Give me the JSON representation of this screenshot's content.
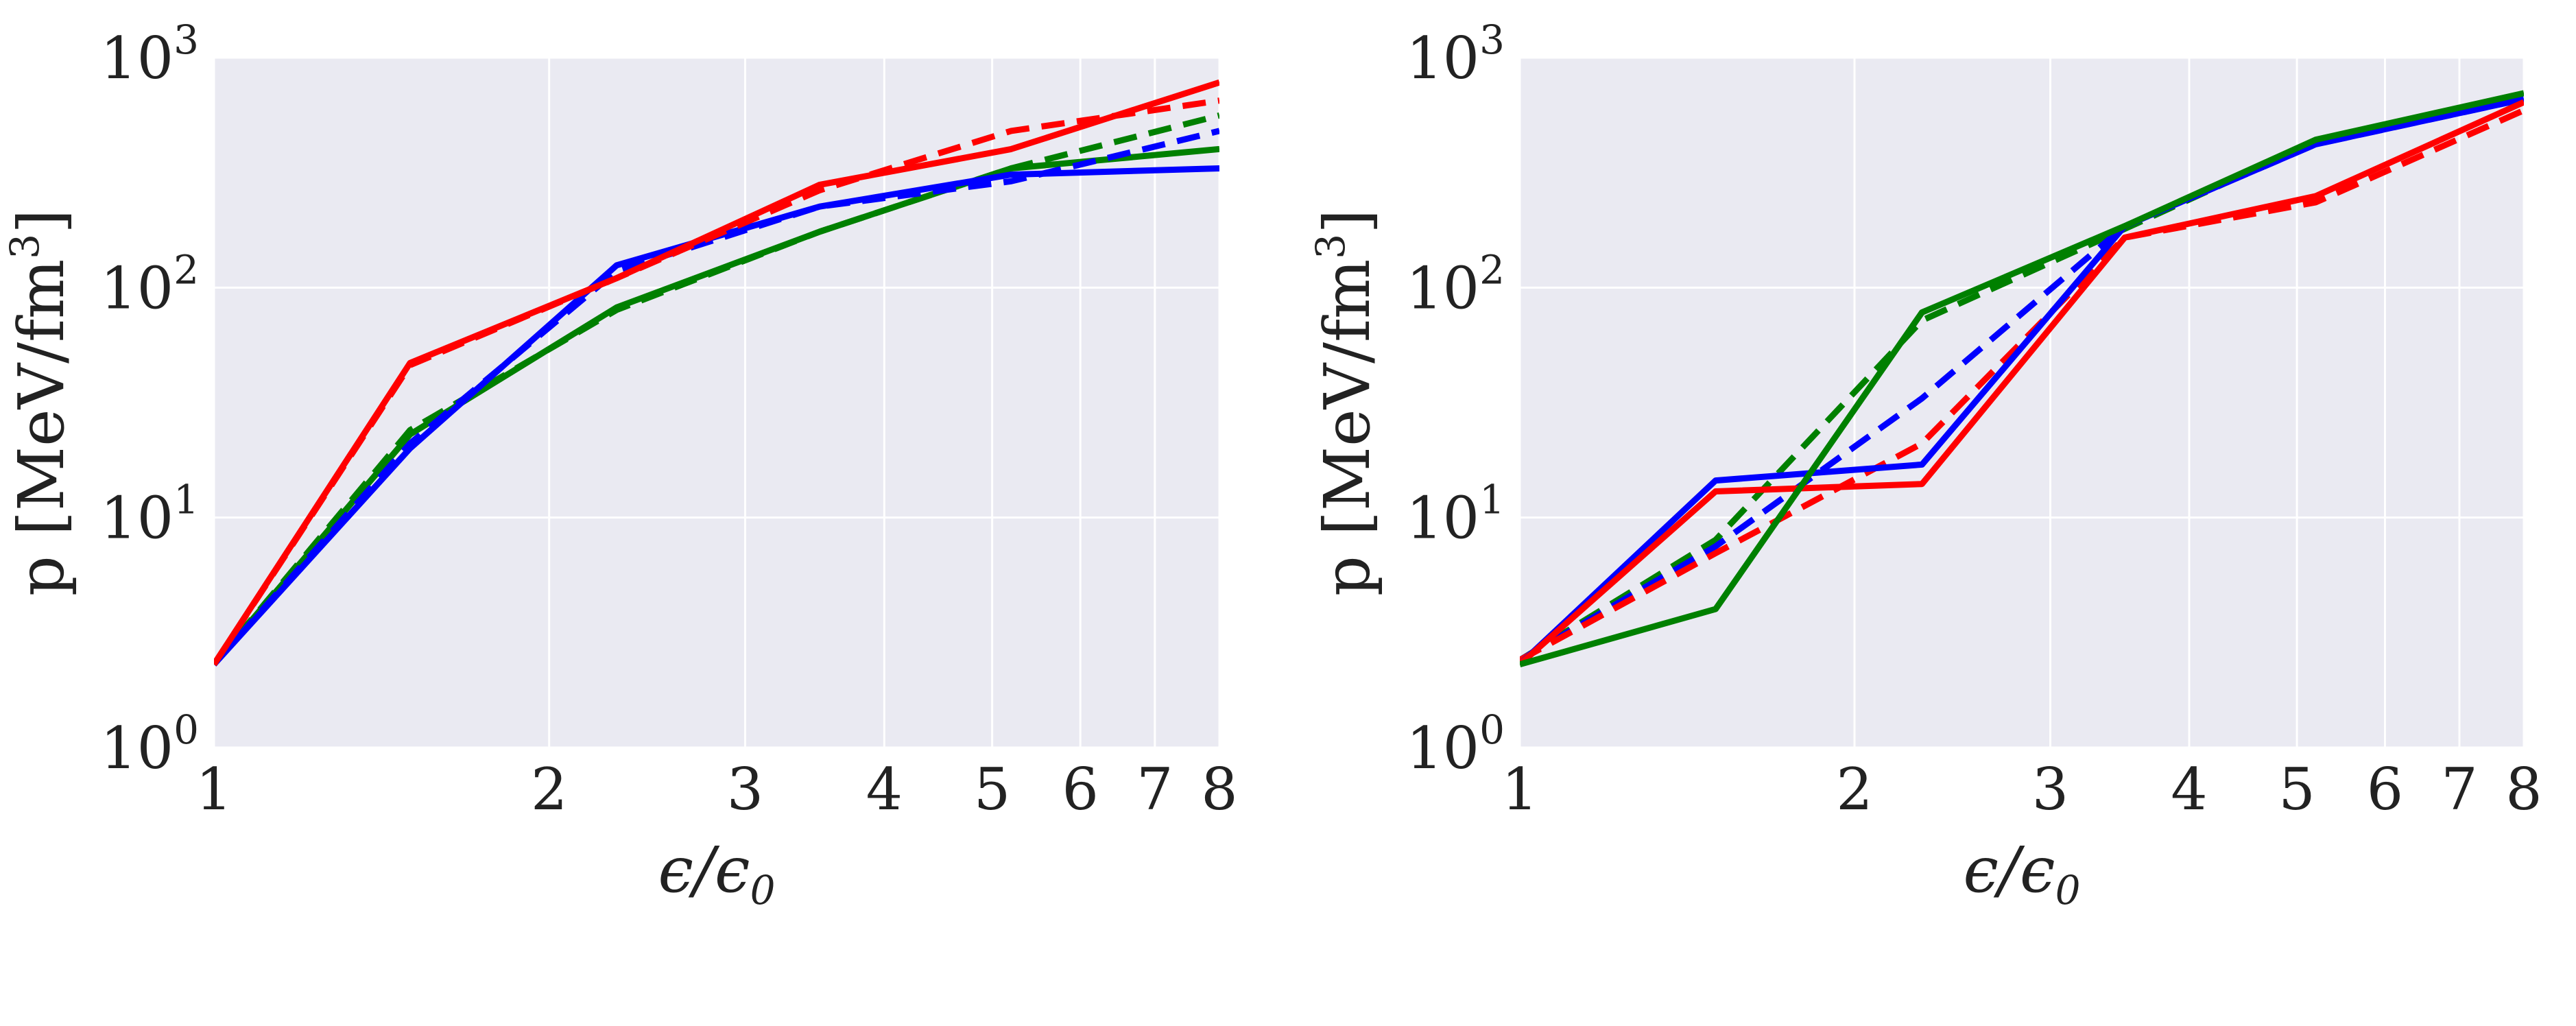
{
  "chart_data": [
    {
      "type": "line",
      "xscale": "log",
      "yscale": "log",
      "xlim": [
        1,
        8
      ],
      "ylim": [
        1,
        1000
      ],
      "grid": true,
      "xlabel": "ϵ/ϵ",
      "xlabel_sub": "0",
      "ylabel_prefix": "p [MeV/fm",
      "ylabel_sup": "3",
      "ylabel_suffix": "]",
      "xticks": [
        {
          "value": 1,
          "label": "1"
        },
        {
          "value": 2,
          "label": "2"
        },
        {
          "value": 3,
          "label": "3"
        },
        {
          "value": 4,
          "label": "4"
        },
        {
          "value": 5,
          "label": "5"
        },
        {
          "value": 6,
          "label": "6"
        },
        {
          "value": 7,
          "label": "7"
        },
        {
          "value": 8,
          "label": "8"
        }
      ],
      "yticks": [
        {
          "value": 1,
          "base": "10",
          "exp": "0"
        },
        {
          "value": 10,
          "base": "10",
          "exp": "1"
        },
        {
          "value": 100,
          "base": "10",
          "exp": "2"
        },
        {
          "value": 1000,
          "base": "10",
          "exp": "3"
        }
      ],
      "series": [
        {
          "color": "#008000",
          "dash": "solid",
          "points": [
            [
              1,
              2.3
            ],
            [
              1.5,
              23
            ],
            [
              2.3,
              82
            ],
            [
              3.5,
              175
            ],
            [
              5.2,
              330
            ],
            [
              8,
              400
            ]
          ]
        },
        {
          "color": "#008000",
          "dash": "dashed",
          "points": [
            [
              1,
              2.3
            ],
            [
              1.5,
              24
            ],
            [
              2.3,
              80
            ],
            [
              3.5,
              175
            ],
            [
              5.2,
              330
            ],
            [
              8,
              560
            ]
          ]
        },
        {
          "color": "#0000ff",
          "dash": "solid",
          "points": [
            [
              1,
              2.3
            ],
            [
              1.5,
              20
            ],
            [
              2.3,
              125
            ],
            [
              3.5,
              225
            ],
            [
              5.2,
              310
            ],
            [
              8,
              330
            ]
          ]
        },
        {
          "color": "#0000ff",
          "dash": "dashed",
          "points": [
            [
              1,
              2.3
            ],
            [
              1.5,
              21
            ],
            [
              2.3,
              118
            ],
            [
              3.5,
              225
            ],
            [
              5.2,
              290
            ],
            [
              8,
              480
            ]
          ]
        },
        {
          "color": "#ff0000",
          "dash": "dashed",
          "points": [
            [
              1,
              2.3
            ],
            [
              1.5,
              46
            ],
            [
              2.3,
              110
            ],
            [
              3.5,
              265
            ],
            [
              5.2,
              480
            ],
            [
              8,
              650
            ]
          ]
        },
        {
          "color": "#ff0000",
          "dash": "solid",
          "points": [
            [
              1,
              2.3
            ],
            [
              1.5,
              47
            ],
            [
              2.3,
              110
            ],
            [
              3.5,
              280
            ],
            [
              5.2,
              400
            ],
            [
              8,
              780
            ]
          ]
        }
      ]
    },
    {
      "type": "line",
      "xscale": "log",
      "yscale": "log",
      "xlim": [
        1,
        8
      ],
      "ylim": [
        1,
        1000
      ],
      "grid": true,
      "xlabel": "ϵ/ϵ",
      "xlabel_sub": "0",
      "ylabel_prefix": "p [MeV/fm",
      "ylabel_sup": "3",
      "ylabel_suffix": "]",
      "xticks": [
        {
          "value": 1,
          "label": "1"
        },
        {
          "value": 2,
          "label": "2"
        },
        {
          "value": 3,
          "label": "3"
        },
        {
          "value": 4,
          "label": "4"
        },
        {
          "value": 5,
          "label": "5"
        },
        {
          "value": 6,
          "label": "6"
        },
        {
          "value": 7,
          "label": "7"
        },
        {
          "value": 8,
          "label": "8"
        }
      ],
      "yticks": [
        {
          "value": 1,
          "base": "10",
          "exp": "0"
        },
        {
          "value": 10,
          "base": "10",
          "exp": "1"
        },
        {
          "value": 100,
          "base": "10",
          "exp": "2"
        },
        {
          "value": 1000,
          "base": "10",
          "exp": "3"
        }
      ],
      "series": [
        {
          "color": "#008000",
          "dash": "dashed",
          "points": [
            [
              1,
              2.4
            ],
            [
              1.5,
              8
            ],
            [
              2.3,
              72
            ],
            [
              3.5,
              180
            ],
            [
              5.2,
              430
            ],
            [
              8,
              690
            ]
          ]
        },
        {
          "color": "#0000ff",
          "dash": "dashed",
          "points": [
            [
              1,
              2.4
            ],
            [
              1.5,
              7.5
            ],
            [
              2.3,
              33
            ],
            [
              3.5,
              185
            ],
            [
              5.2,
              420
            ],
            [
              8,
              660
            ]
          ]
        },
        {
          "color": "#ff0000",
          "dash": "dashed",
          "points": [
            [
              1,
              2.4
            ],
            [
              1.5,
              7
            ],
            [
              2.3,
              21
            ],
            [
              3.5,
              165
            ],
            [
              5.2,
              235
            ],
            [
              8,
              590
            ]
          ]
        },
        {
          "color": "#0000ff",
          "dash": "solid",
          "points": [
            [
              1,
              2.3
            ],
            [
              1.5,
              14.5
            ],
            [
              2.3,
              17
            ],
            [
              3.5,
              185
            ],
            [
              5.2,
              420
            ],
            [
              8,
              660
            ]
          ]
        },
        {
          "color": "#ff0000",
          "dash": "solid",
          "points": [
            [
              1,
              2.3
            ],
            [
              1.5,
              13
            ],
            [
              2.3,
              14
            ],
            [
              3.5,
              165
            ],
            [
              5.2,
              250
            ],
            [
              8,
              640
            ]
          ]
        },
        {
          "color": "#008000",
          "dash": "solid",
          "points": [
            [
              1,
              2.3
            ],
            [
              1.5,
              4
            ],
            [
              2.3,
              78
            ],
            [
              3.5,
              185
            ],
            [
              5.2,
              440
            ],
            [
              8,
              700
            ]
          ]
        }
      ]
    }
  ]
}
